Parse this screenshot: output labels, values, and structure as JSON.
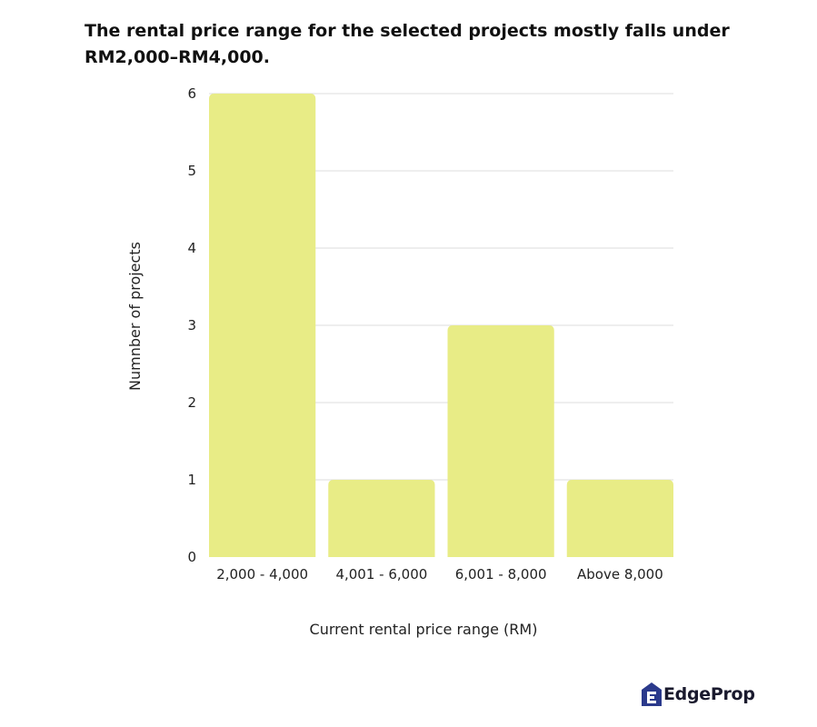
{
  "chart_data": {
    "type": "bar",
    "title": "The rental price range for the selected projects mostly falls under RM2,000–RM4,000.",
    "xlabel": "Current rental price range (RM)",
    "ylabel": "Numnber of projects",
    "categories": [
      "2,000 - 4,000",
      "4,001 - 6,000",
      "6,001 - 8,000",
      "Above 8,000"
    ],
    "values": [
      6,
      1,
      3,
      1
    ],
    "ylim": [
      0,
      6
    ],
    "yticks": [
      "0",
      "1",
      "2",
      "3",
      "4",
      "5",
      "6"
    ],
    "grid": true,
    "legend": "none",
    "bar_color": "#e8ec86",
    "grid_color": "#dddddd"
  },
  "logo": {
    "text": "EdgeProp",
    "icon": "edgeprop-house-e-icon",
    "color": "#2b3a8c"
  }
}
